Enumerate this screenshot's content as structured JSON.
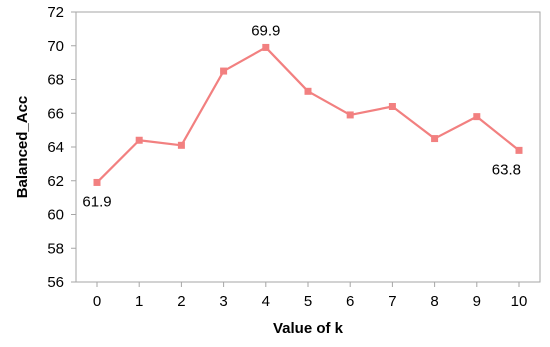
{
  "chart_data": {
    "type": "line",
    "title": "",
    "xlabel": "Value of k",
    "ylabel": "Balanced_Acc",
    "x": [
      0,
      1,
      2,
      3,
      4,
      5,
      6,
      7,
      8,
      9,
      10
    ],
    "x_tick_labels": [
      "0",
      "1",
      "2",
      "3",
      "4",
      "5",
      "6",
      "7",
      "8",
      "9",
      "10"
    ],
    "y_ticks": [
      56,
      58,
      60,
      62,
      64,
      66,
      68,
      70,
      72
    ],
    "y_tick_labels": [
      "56",
      "58",
      "60",
      "62",
      "64",
      "66",
      "68",
      "70",
      "72"
    ],
    "ylim": [
      56,
      72
    ],
    "grid": false,
    "legend": "none",
    "series": [
      {
        "values": [
          61.9,
          64.4,
          64.1,
          68.5,
          69.9,
          67.3,
          65.9,
          66.4,
          64.5,
          65.8,
          63.8
        ],
        "color": "#F28080",
        "marker": "square"
      }
    ],
    "data_labels": [
      {
        "index": 0,
        "text": "61.9",
        "placement": "below"
      },
      {
        "index": 4,
        "text": "69.9",
        "placement": "above"
      },
      {
        "index": 10,
        "text": "63.8",
        "placement": "below"
      }
    ],
    "axis_color": "#A6A6A6"
  }
}
